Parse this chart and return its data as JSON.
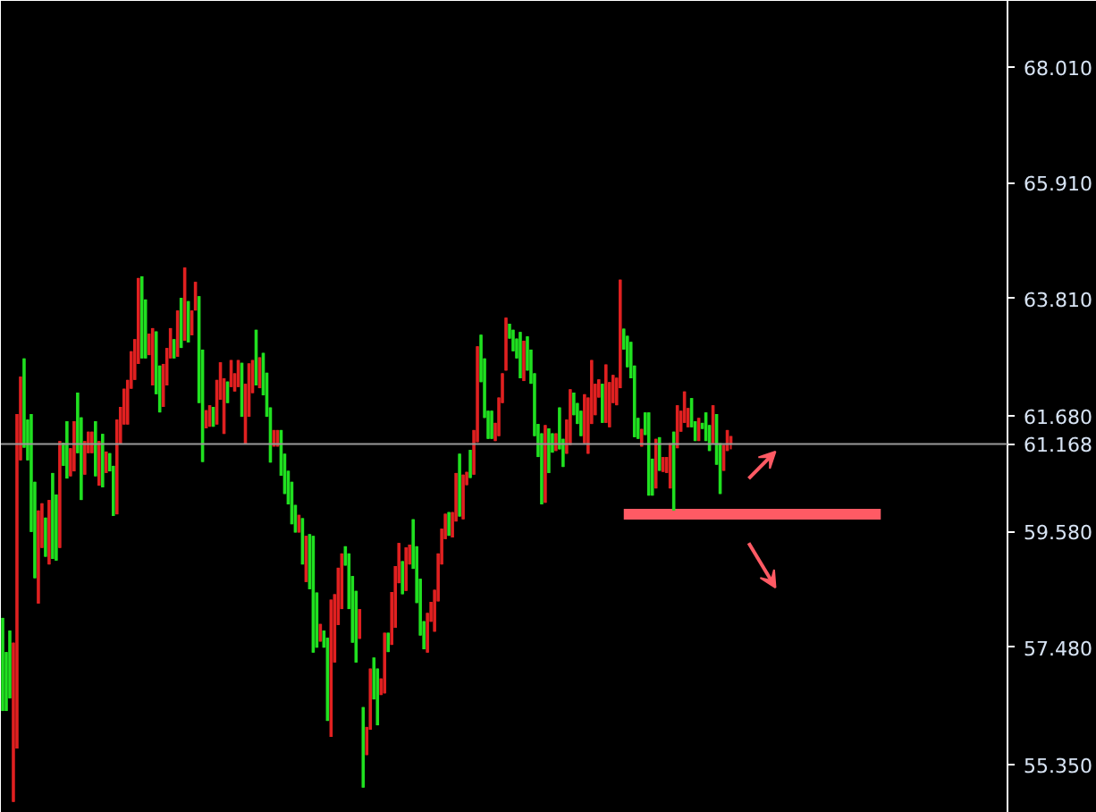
{
  "chart_data": {
    "type": "candlestick",
    "categories": [
      null,
      null,
      null,
      null,
      null,
      null,
      null,
      null,
      null,
      null,
      null,
      null,
      null,
      null,
      null,
      null,
      null,
      null,
      null,
      null,
      null,
      null,
      null,
      null,
      null,
      null,
      null,
      null,
      null,
      null,
      null,
      null,
      null,
      null,
      null,
      null,
      null,
      null,
      null,
      null,
      null,
      null,
      null,
      null,
      null,
      null,
      null,
      null,
      null,
      null,
      null,
      null,
      null,
      null,
      null,
      null,
      null,
      null,
      null,
      null,
      null,
      null,
      null,
      null,
      null,
      null,
      null,
      null,
      null,
      null,
      null,
      null,
      null,
      null,
      null,
      null,
      null,
      null,
      null,
      null,
      null,
      null,
      null,
      null,
      null,
      null,
      null,
      null,
      null,
      null,
      null,
      null,
      null,
      null,
      null,
      null,
      null,
      null,
      null,
      null,
      null,
      null,
      null,
      null,
      null,
      null,
      null,
      null,
      null,
      null,
      null,
      null,
      null,
      null,
      null,
      null,
      null,
      null,
      null,
      null,
      null,
      null,
      null,
      null,
      null,
      null,
      null,
      null,
      null,
      null,
      null,
      null,
      null,
      null,
      null,
      null,
      null,
      null,
      null,
      null,
      null,
      null,
      null,
      null,
      null,
      null,
      null,
      null,
      null,
      null,
      null,
      null,
      null,
      null,
      null,
      null,
      null,
      null,
      null,
      null,
      null,
      null,
      null,
      null,
      null,
      null,
      null,
      null,
      null,
      null,
      null,
      null,
      null,
      null,
      null,
      null,
      null,
      null,
      null,
      null,
      null,
      null,
      null,
      null,
      null,
      null,
      null,
      null,
      null,
      null,
      null,
      null,
      null,
      null,
      null,
      null,
      null,
      null,
      null,
      null,
      null,
      null,
      null,
      null,
      null,
      null,
      null,
      null,
      null,
      null,
      null,
      null,
      null,
      null,
      null,
      null,
      null,
      null,
      null,
      null,
      null,
      null,
      null,
      null,
      null,
      null,
      null,
      null,
      null,
      null,
      null,
      null,
      null,
      null,
      null,
      null,
      null,
      null,
      null,
      null,
      null,
      null,
      null,
      null,
      null,
      null,
      null,
      null,
      null,
      null,
      null,
      null,
      null,
      null,
      null,
      null,
      null,
      null,
      null,
      null,
      null,
      null,
      null,
      null,
      null,
      null,
      null,
      null,
      null,
      null,
      null,
      null,
      null,
      null,
      null,
      null,
      null,
      null,
      null,
      null,
      null,
      null
    ],
    "ohlc": [
      [
        56.32,
        58.01,
        56.32,
        58.01
      ],
      [
        56.32,
        57.39,
        56.32,
        57.39
      ],
      [
        56.55,
        57.78,
        56.55,
        57.78
      ],
      [
        57.56,
        57.56,
        54.67,
        54.67
      ],
      [
        61.71,
        61.71,
        55.64,
        55.64
      ],
      [
        62.39,
        62.39,
        60.87,
        60.87
      ],
      [
        61.1,
        62.72,
        61.1,
        62.72
      ],
      [
        60.87,
        61.61,
        60.87,
        61.61
      ],
      [
        59.57,
        61.71,
        59.57,
        61.71
      ],
      [
        58.73,
        60.48,
        58.73,
        60.48
      ],
      [
        59.96,
        59.96,
        58.27,
        58.27
      ],
      [
        60.09,
        60.09,
        59.28,
        59.28
      ],
      [
        59.12,
        59.83,
        59.12,
        59.83
      ],
      [
        60.15,
        60.15,
        58.98,
        58.98
      ],
      [
        59.08,
        60.64,
        59.08,
        60.64
      ],
      [
        59.05,
        60.25,
        59.05,
        60.25
      ],
      [
        61.22,
        61.22,
        59.28,
        59.28
      ],
      [
        60.77,
        61.19,
        60.77,
        61.19
      ],
      [
        60.54,
        61.58,
        60.54,
        61.58
      ],
      [
        61.09,
        61.09,
        60.58,
        60.58
      ],
      [
        61.58,
        61.58,
        60.67,
        60.67
      ],
      [
        61.0,
        62.1,
        61.0,
        62.1
      ],
      [
        60.15,
        61.65,
        60.15,
        61.65
      ],
      [
        61.22,
        61.22,
        60.61,
        60.61
      ],
      [
        61.39,
        61.39,
        61.0,
        61.0
      ],
      [
        61.39,
        61.39,
        61.0,
        61.0
      ],
      [
        60.58,
        61.58,
        60.58,
        61.58
      ],
      [
        61.22,
        61.22,
        60.41,
        60.41
      ],
      [
        60.38,
        61.35,
        60.38,
        61.35
      ],
      [
        61.03,
        61.03,
        60.64,
        60.64
      ],
      [
        60.67,
        61.0,
        60.67,
        61.0
      ],
      [
        59.86,
        60.77,
        59.86,
        60.77
      ],
      [
        61.61,
        61.61,
        59.89,
        59.89
      ],
      [
        61.84,
        61.84,
        61.16,
        61.16
      ],
      [
        62.17,
        62.17,
        61.52,
        61.52
      ],
      [
        62.33,
        62.33,
        61.52,
        61.52
      ],
      [
        62.85,
        62.85,
        62.17,
        62.17
      ],
      [
        63.07,
        63.07,
        62.33,
        62.33
      ],
      [
        64.18,
        64.18,
        62.62,
        62.62
      ],
      [
        62.72,
        64.21,
        62.72,
        64.21
      ],
      [
        62.72,
        63.79,
        62.72,
        63.79
      ],
      [
        63.17,
        63.17,
        62.78,
        62.78
      ],
      [
        63.27,
        63.27,
        62.23,
        62.23
      ],
      [
        62.07,
        63.21,
        62.07,
        63.21
      ],
      [
        61.74,
        62.59,
        61.74,
        62.59
      ],
      [
        62.62,
        62.62,
        61.84,
        61.84
      ],
      [
        62.91,
        62.91,
        62.23,
        62.23
      ],
      [
        63.27,
        63.27,
        62.72,
        62.72
      ],
      [
        62.72,
        63.07,
        62.72,
        63.07
      ],
      [
        63.59,
        63.59,
        62.75,
        62.75
      ],
      [
        62.91,
        63.82,
        62.91,
        63.82
      ],
      [
        64.37,
        64.37,
        63.04,
        63.04
      ],
      [
        63.01,
        63.76,
        63.01,
        63.76
      ],
      [
        63.59,
        63.59,
        63.14,
        63.14
      ],
      [
        64.11,
        64.11,
        63.59,
        63.59
      ],
      [
        61.91,
        63.85,
        61.91,
        63.85
      ],
      [
        60.84,
        62.88,
        60.84,
        62.88
      ],
      [
        61.78,
        61.78,
        61.45,
        61.45
      ],
      [
        61.87,
        61.87,
        61.48,
        61.48
      ],
      [
        61.48,
        61.84,
        61.48,
        61.84
      ],
      [
        62.33,
        62.33,
        61.52,
        61.52
      ],
      [
        62.65,
        62.65,
        61.97,
        61.97
      ],
      [
        62.36,
        62.36,
        61.35,
        61.35
      ],
      [
        61.91,
        62.3,
        61.91,
        62.3
      ],
      [
        62.69,
        62.69,
        62.2,
        62.2
      ],
      [
        62.45,
        62.45,
        62.12,
        62.12
      ],
      [
        62.69,
        62.69,
        62.2,
        62.2
      ],
      [
        61.66,
        62.64,
        61.66,
        62.64
      ],
      [
        62.26,
        62.26,
        61.17,
        61.17
      ],
      [
        62.63,
        62.63,
        61.66,
        61.66
      ],
      [
        62.69,
        62.69,
        62.09,
        62.09
      ],
      [
        62.23,
        63.24,
        62.23,
        63.24
      ],
      [
        62.74,
        62.74,
        62.18,
        62.18
      ],
      [
        62.05,
        62.82,
        62.05,
        62.82
      ],
      [
        61.66,
        62.46,
        61.66,
        62.46
      ],
      [
        60.83,
        61.83,
        60.83,
        61.83
      ],
      [
        61.42,
        61.42,
        61.12,
        61.12
      ],
      [
        61.42,
        61.42,
        61.12,
        61.12
      ],
      [
        60.59,
        61.42,
        60.59,
        61.42
      ],
      [
        60.26,
        60.99,
        60.26,
        60.99
      ],
      [
        60.07,
        60.68,
        60.07,
        60.68
      ],
      [
        59.71,
        60.48,
        59.71,
        60.48
      ],
      [
        59.56,
        60.06,
        59.56,
        60.06
      ],
      [
        59.88,
        59.88,
        59.56,
        59.56
      ],
      [
        58.98,
        59.82,
        58.98,
        59.82
      ],
      [
        59.5,
        59.5,
        58.66,
        58.66
      ],
      [
        58.53,
        59.53,
        58.53,
        59.53
      ],
      [
        57.38,
        59.5,
        57.38,
        59.5
      ],
      [
        57.47,
        58.47,
        57.47,
        58.47
      ],
      [
        57.9,
        57.9,
        57.58,
        57.58
      ],
      [
        57.47,
        57.78,
        57.47,
        57.78
      ],
      [
        56.14,
        57.65,
        56.14,
        57.65
      ],
      [
        58.34,
        58.34,
        55.85,
        55.85
      ],
      [
        58.44,
        58.44,
        57.2,
        57.2
      ],
      [
        58.92,
        58.92,
        57.88,
        57.88
      ],
      [
        59.18,
        59.18,
        58.17,
        58.17
      ],
      [
        58.96,
        59.31,
        58.96,
        59.31
      ],
      [
        58.17,
        59.18,
        58.17,
        59.18
      ],
      [
        57.56,
        58.77,
        57.56,
        58.77
      ],
      [
        57.2,
        58.5,
        57.2,
        58.5
      ],
      [
        58.17,
        58.17,
        57.63,
        57.63
      ],
      [
        54.93,
        56.39,
        54.93,
        56.39
      ],
      [
        56.03,
        56.03,
        55.52,
        55.52
      ],
      [
        57.09,
        57.09,
        55.98,
        55.98
      ],
      [
        56.53,
        57.29,
        56.53,
        57.29
      ],
      [
        56.06,
        57.09,
        56.06,
        57.09
      ],
      [
        56.91,
        56.91,
        56.61,
        56.61
      ],
      [
        57.74,
        57.74,
        56.64,
        56.64
      ],
      [
        57.39,
        57.74,
        57.39,
        57.74
      ],
      [
        58.48,
        58.48,
        57.52,
        57.52
      ],
      [
        58.95,
        58.95,
        57.83,
        57.83
      ],
      [
        59.37,
        59.37,
        58.64,
        58.64
      ],
      [
        58.44,
        59.04,
        58.44,
        59.04
      ],
      [
        59.29,
        59.29,
        58.5,
        58.5
      ],
      [
        59.34,
        59.34,
        58.98,
        58.98
      ],
      [
        58.9,
        59.8,
        58.9,
        59.8
      ],
      [
        58.28,
        59.31,
        58.28,
        59.31
      ],
      [
        57.69,
        58.72,
        57.69,
        58.72
      ],
      [
        57.44,
        57.95,
        57.44,
        57.95
      ],
      [
        58.1,
        58.1,
        57.38,
        57.38
      ],
      [
        58.3,
        58.3,
        57.94,
        57.94
      ],
      [
        58.52,
        58.52,
        57.76,
        57.76
      ],
      [
        59.18,
        59.18,
        58.31,
        58.31
      ],
      [
        59.63,
        59.63,
        58.98,
        58.98
      ],
      [
        59.9,
        59.9,
        59.44,
        59.44
      ],
      [
        59.5,
        59.93,
        59.5,
        59.93
      ],
      [
        59.93,
        59.93,
        59.47,
        59.47
      ],
      [
        60.64,
        60.64,
        59.76,
        59.76
      ],
      [
        59.85,
        60.99,
        59.85,
        60.99
      ],
      [
        60.61,
        60.61,
        59.8,
        59.8
      ],
      [
        60.66,
        60.66,
        60.42,
        60.42
      ],
      [
        60.55,
        61.06,
        60.55,
        61.06
      ],
      [
        61.42,
        61.42,
        60.61,
        60.61
      ],
      [
        62.94,
        62.94,
        61.2,
        61.2
      ],
      [
        62.29,
        63.15,
        62.29,
        63.15
      ],
      [
        61.64,
        62.72,
        61.64,
        62.72
      ],
      [
        61.26,
        61.77,
        61.26,
        61.77
      ],
      [
        61.26,
        61.77,
        61.26,
        61.77
      ],
      [
        61.55,
        61.55,
        61.22,
        61.22
      ],
      [
        62.01,
        62.01,
        61.31,
        61.31
      ],
      [
        62.45,
        62.45,
        61.91,
        61.91
      ],
      [
        63.46,
        63.46,
        62.5,
        62.5
      ],
      [
        63.08,
        63.35,
        63.08,
        63.35
      ],
      [
        62.85,
        63.24,
        62.85,
        63.24
      ],
      [
        62.72,
        63.08,
        62.72,
        63.08
      ],
      [
        62.36,
        63.2,
        62.36,
        63.2
      ],
      [
        63.04,
        63.04,
        62.31,
        62.31
      ],
      [
        62.5,
        63.12,
        62.5,
        63.12
      ],
      [
        62.26,
        62.88,
        62.26,
        62.88
      ],
      [
        61.31,
        62.45,
        61.31,
        62.45
      ],
      [
        60.93,
        61.53,
        60.93,
        61.53
      ],
      [
        60.07,
        61.36,
        60.07,
        61.36
      ],
      [
        61.51,
        61.51,
        60.1,
        60.1
      ],
      [
        60.64,
        61.45,
        60.64,
        61.45
      ],
      [
        61.01,
        61.36,
        61.01,
        61.36
      ],
      [
        61.36,
        61.36,
        61.04,
        61.04
      ],
      [
        61.07,
        61.83,
        61.07,
        61.83
      ],
      [
        60.75,
        61.26,
        60.75,
        61.26
      ],
      [
        61.61,
        61.61,
        60.99,
        60.99
      ],
      [
        62.16,
        62.16,
        61.15,
        61.15
      ],
      [
        61.69,
        62.1,
        61.69,
        62.1
      ],
      [
        61.53,
        61.91,
        61.53,
        61.91
      ],
      [
        61.31,
        61.77,
        61.31,
        61.77
      ],
      [
        62.07,
        62.07,
        61.18,
        61.18
      ],
      [
        62.01,
        62.01,
        60.99,
        60.99
      ],
      [
        62.69,
        62.69,
        61.53,
        61.53
      ],
      [
        62.26,
        62.26,
        61.69,
        61.69
      ],
      [
        62.34,
        62.34,
        62.01,
        62.01
      ],
      [
        61.55,
        62.26,
        61.55,
        62.26
      ],
      [
        62.61,
        62.61,
        61.55,
        61.55
      ],
      [
        62.29,
        62.29,
        61.47,
        61.47
      ],
      [
        62.42,
        62.42,
        61.91,
        61.91
      ],
      [
        62.37,
        62.37,
        61.87,
        61.87
      ],
      [
        64.15,
        64.15,
        62.18,
        62.18
      ],
      [
        62.88,
        63.26,
        62.88,
        63.26
      ],
      [
        62.56,
        63.13,
        62.56,
        63.13
      ],
      [
        62.36,
        63.02,
        62.36,
        63.02
      ],
      [
        61.29,
        62.59,
        61.29,
        62.59
      ],
      [
        61.26,
        61.64,
        61.26,
        61.64
      ],
      [
        61.44,
        61.44,
        61.12,
        61.12
      ],
      [
        61.33,
        61.74,
        61.33,
        61.74
      ],
      [
        60.23,
        61.74,
        60.23,
        61.74
      ],
      [
        60.23,
        60.9,
        60.23,
        60.9
      ],
      [
        61.26,
        61.26,
        60.36,
        60.36
      ],
      [
        60.68,
        61.29,
        60.68,
        61.29
      ],
      [
        60.93,
        60.93,
        60.66,
        60.66
      ],
      [
        60.93,
        60.93,
        60.64,
        60.64
      ],
      [
        61.18,
        61.18,
        60.36,
        60.36
      ],
      [
        59.96,
        61.39,
        59.96,
        61.39
      ],
      [
        61.87,
        61.87,
        61.09,
        61.09
      ],
      [
        61.77,
        61.77,
        61.39,
        61.39
      ],
      [
        62.12,
        62.12,
        61.55,
        61.55
      ],
      [
        61.82,
        61.82,
        61.47,
        61.47
      ],
      [
        61.47,
        62.0,
        61.47,
        62.0
      ],
      [
        61.22,
        61.58,
        61.22,
        61.58
      ],
      [
        61.64,
        61.64,
        61.22,
        61.22
      ],
      [
        61.44,
        61.55,
        61.44,
        61.55
      ],
      [
        61.22,
        61.74,
        61.22,
        61.74
      ],
      [
        61.04,
        61.51,
        61.04,
        61.51
      ],
      [
        61.87,
        61.87,
        61.18,
        61.18
      ],
      [
        60.79,
        61.71,
        60.79,
        61.71
      ],
      [
        60.26,
        61.18,
        60.26,
        61.18
      ],
      [
        61.15,
        61.15,
        60.68,
        60.68
      ],
      [
        61.42,
        61.42,
        61.04,
        61.04
      ],
      [
        61.31,
        61.31,
        61.07,
        61.17
      ],
      null,
      null,
      null,
      null,
      null,
      null,
      null,
      null,
      null,
      null,
      null,
      null,
      null,
      null,
      null,
      null,
      null,
      null,
      null,
      null,
      null,
      null,
      null,
      null,
      null,
      null,
      null,
      null,
      null,
      null,
      null,
      null,
      null,
      null,
      null,
      null,
      null,
      null,
      null,
      null,
      null,
      null,
      null,
      null,
      null,
      null,
      null,
      null,
      null,
      null,
      null,
      null,
      null,
      null,
      null,
      null,
      null,
      null,
      null,
      null,
      null,
      null,
      null,
      null,
      null,
      null,
      null,
      null,
      null,
      null,
      null,
      null,
      null,
      null,
      null,
      null,
      null
    ],
    "series": [
      {
        "type": "line",
        "color": "#ff5a64",
        "values": [
          null,
          null,
          null,
          null,
          null,
          null,
          null,
          null,
          null,
          null,
          null,
          null,
          null,
          null,
          null,
          null,
          null,
          null,
          null,
          null,
          null,
          null,
          null,
          null,
          null,
          null,
          null,
          null,
          null,
          null,
          null,
          null,
          null,
          null,
          null,
          null,
          null,
          null,
          null,
          null,
          null,
          null,
          null,
          null,
          null,
          null,
          null,
          null,
          null,
          null,
          null,
          null,
          null,
          null,
          null,
          null,
          null,
          null,
          null,
          null,
          null,
          null,
          null,
          null,
          null,
          null,
          null,
          null,
          null,
          null,
          null,
          null,
          null,
          null,
          null,
          null,
          null,
          null,
          null,
          null,
          null,
          null,
          null,
          null,
          null,
          null,
          null,
          null,
          null,
          null,
          null,
          null,
          null,
          null,
          null,
          null,
          null,
          null,
          null,
          null,
          null,
          null,
          null,
          null,
          null,
          null,
          null,
          null,
          null,
          null,
          null,
          null,
          null,
          null,
          null,
          null,
          null,
          null,
          null,
          null,
          null,
          null,
          null,
          null,
          null,
          null,
          null,
          null,
          null,
          null,
          null,
          null,
          null,
          null,
          null,
          null,
          null,
          null,
          null,
          null,
          null,
          null,
          null,
          null,
          null,
          null,
          null,
          null,
          null,
          null,
          null,
          null,
          null,
          null,
          null,
          null,
          null,
          null,
          null,
          null,
          null,
          null,
          null,
          null,
          null,
          null,
          null,
          null,
          null,
          null,
          null,
          null,
          null,
          null,
          59.89,
          59.89,
          59.89,
          59.89,
          59.89,
          59.89,
          59.89,
          59.89,
          59.89,
          59.89,
          59.89,
          59.89,
          59.89,
          59.89,
          59.89,
          59.89,
          59.89,
          59.89,
          59.89,
          59.89,
          59.89,
          59.89,
          59.89,
          59.89,
          59.89,
          59.89,
          59.89,
          59.89,
          59.89,
          59.89,
          59.89,
          59.89,
          59.89,
          59.89,
          59.89,
          59.89,
          59.89,
          59.89,
          59.89,
          59.89,
          59.89,
          59.89,
          59.89,
          59.89,
          59.89,
          59.89,
          59.89,
          59.89,
          59.89,
          59.89,
          59.89,
          59.89,
          59.89,
          59.89,
          59.89,
          59.89,
          59.89,
          59.89,
          59.89,
          59.89,
          59.89,
          59.89,
          59.89,
          59.89,
          59.89,
          59.89,
          59.89,
          59.89,
          59.89,
          59.89,
          59.89,
          59.89,
          59.89,
          null,
          null,
          null,
          null,
          null,
          null,
          null,
          null,
          null,
          null,
          null,
          null,
          null,
          null,
          null,
          null,
          null,
          null,
          null,
          null,
          null,
          null,
          null,
          null,
          null,
          null,
          null,
          null,
          null,
          null,
          null,
          null,
          null,
          null,
          null
        ]
      }
    ],
    "ylim": [
      54.47,
      69.21
    ],
    "yticks": [
      {
        "value": 55.35,
        "label": "55.350"
      },
      {
        "value": 57.48,
        "label": "57.480"
      },
      {
        "value": 59.58,
        "label": "59.580"
      },
      {
        "value": 61.68,
        "label": "61.680"
      },
      {
        "value": 63.81,
        "label": "63.810"
      },
      {
        "value": 65.91,
        "label": "65.910"
      },
      {
        "value": 68.01,
        "label": "68.010"
      }
    ],
    "ref_lines": [
      {
        "axis": "y",
        "value": 61.168,
        "label": "61.168",
        "color": "#9a9a9a"
      }
    ],
    "tick_labels": "y",
    "grid": false
  }
}
